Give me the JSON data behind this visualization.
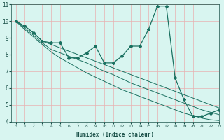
{
  "xlabel": "Humidex (Indice chaleur)",
  "ylabel": "",
  "bg_color": "#d8f5f0",
  "grid_color": "#e8b0b0",
  "line_color": "#1a7060",
  "xlim": [
    -0.5,
    23
  ],
  "ylim": [
    4,
    11
  ],
  "xticks": [
    0,
    1,
    2,
    3,
    4,
    5,
    6,
    7,
    8,
    9,
    10,
    11,
    12,
    13,
    14,
    15,
    16,
    17,
    18,
    19,
    20,
    21,
    22,
    23
  ],
  "yticks": [
    4,
    5,
    6,
    7,
    8,
    9,
    10,
    11
  ],
  "series_main": [
    10.0,
    9.7,
    9.3,
    8.8,
    8.7,
    8.7,
    7.8,
    7.8,
    8.1,
    8.5,
    7.5,
    7.5,
    7.9,
    8.5,
    8.5,
    9.5,
    10.9,
    10.9,
    6.6,
    5.3,
    4.3,
    4.3,
    4.5,
    4.7
  ],
  "series_lines": [
    [
      10.0,
      9.7,
      9.3,
      8.8,
      8.6,
      8.4,
      8.2,
      8.0,
      7.8,
      7.6,
      7.4,
      7.2,
      7.0,
      6.8,
      6.6,
      6.4,
      6.2,
      6.0,
      5.8,
      5.6,
      5.4,
      5.2,
      5.0,
      4.8
    ],
    [
      10.0,
      9.6,
      9.15,
      8.7,
      8.3,
      8.1,
      7.9,
      7.7,
      7.5,
      7.25,
      7.0,
      6.8,
      6.55,
      6.3,
      6.1,
      5.9,
      5.7,
      5.5,
      5.3,
      5.1,
      4.9,
      4.7,
      4.55,
      4.4
    ],
    [
      10.0,
      9.5,
      9.05,
      8.6,
      8.15,
      7.8,
      7.5,
      7.2,
      6.9,
      6.65,
      6.4,
      6.15,
      5.9,
      5.7,
      5.5,
      5.3,
      5.1,
      4.9,
      4.7,
      4.5,
      4.35,
      4.2,
      4.1,
      4.05
    ]
  ]
}
